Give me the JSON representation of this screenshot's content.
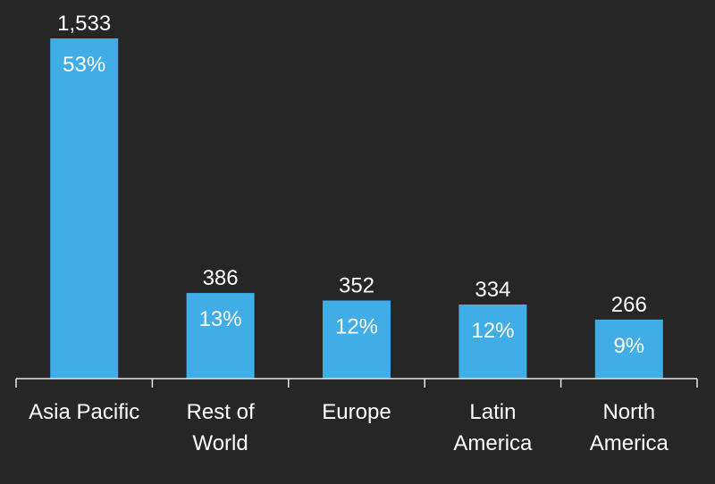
{
  "chart_data": {
    "type": "bar",
    "title": "",
    "xlabel": "",
    "ylabel": "",
    "ylim": [
      0,
      1533
    ],
    "grid": false,
    "legend": "none",
    "categories": [
      [
        "Asia Pacific"
      ],
      [
        "Rest of",
        "World"
      ],
      [
        "Europe"
      ],
      [
        "Latin",
        "America"
      ],
      [
        "North",
        "America"
      ]
    ],
    "values": [
      1533,
      386,
      352,
      334,
      266
    ],
    "value_labels": [
      "1,533",
      "386",
      "352",
      "334",
      "266"
    ],
    "share_labels": [
      "53%",
      "13%",
      "12%",
      "12%",
      "9%"
    ],
    "colors": {
      "background": "#262626",
      "bar": "#41ADE7",
      "axis": "#E6E6E6",
      "text": "#FFFFFF"
    }
  }
}
